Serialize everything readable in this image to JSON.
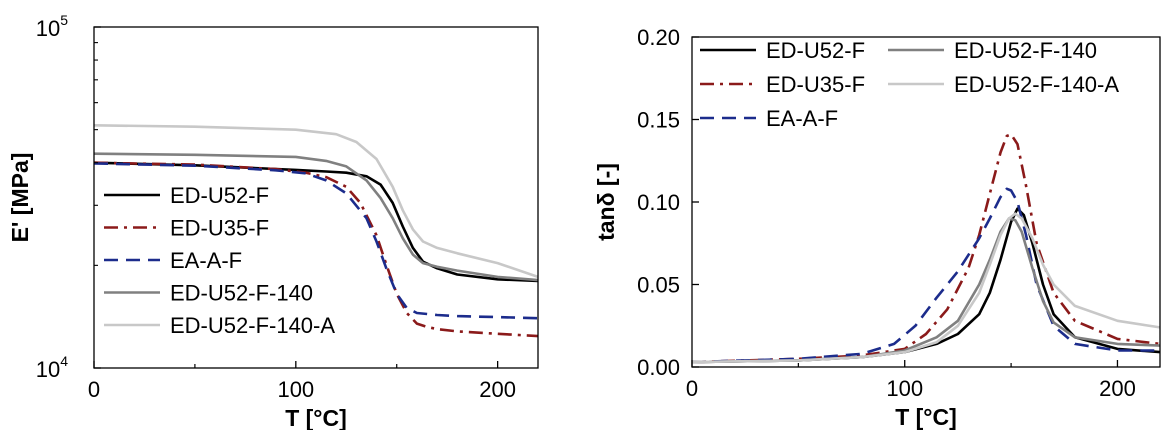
{
  "chart_data": [
    {
      "type": "line",
      "xlabel": "T [°C]",
      "ylabel": "E' [MPa]",
      "xlim": [
        0,
        220
      ],
      "ylim": [
        10000,
        100000
      ],
      "yscale": "log",
      "grid": false,
      "legend_position": "bottom-left",
      "x_ticks": [
        0,
        100,
        200
      ],
      "x_tick_labels": [
        "0",
        "100",
        "200"
      ],
      "y_ticks": [
        {
          "base": "10",
          "exp": "4",
          "value": 10000
        },
        {
          "base": "10",
          "exp": "5",
          "value": 100000
        }
      ],
      "series": [
        {
          "name": "ED-U52-F",
          "color": "#000000",
          "dash": "solid",
          "x": [
            0,
            50,
            100,
            115,
            125,
            135,
            142,
            148,
            153,
            158,
            163,
            170,
            180,
            200,
            220
          ],
          "y": [
            40000,
            39300,
            38100,
            37700,
            37400,
            36500,
            34500,
            30500,
            26000,
            22500,
            20500,
            19600,
            18800,
            18200,
            18000
          ]
        },
        {
          "name": "ED-U35-F",
          "color": "#8b1a1a",
          "dash": "dashdot",
          "x": [
            0,
            50,
            90,
            105,
            115,
            125,
            132,
            140,
            145,
            150,
            155,
            160,
            165,
            170,
            180,
            200,
            220
          ],
          "y": [
            40000,
            39500,
            38300,
            37400,
            36300,
            34000,
            30500,
            24500,
            20000,
            16500,
            14500,
            13500,
            13200,
            13000,
            12800,
            12600,
            12400
          ]
        },
        {
          "name": "EA-A-F",
          "color": "#1c2c8c",
          "dash": "dashed",
          "x": [
            0,
            50,
            90,
            105,
            115,
            125,
            135,
            140,
            145,
            150,
            155,
            160,
            170,
            180,
            200,
            220
          ],
          "y": [
            39800,
            39200,
            38000,
            37200,
            35500,
            32500,
            27500,
            23500,
            19500,
            16500,
            15000,
            14500,
            14300,
            14200,
            14100,
            14000
          ]
        },
        {
          "name": "ED-U52-F-140",
          "color": "#808080",
          "dash": "solid",
          "x": [
            0,
            50,
            100,
            115,
            125,
            135,
            142,
            148,
            153,
            158,
            163,
            170,
            180,
            200,
            220
          ],
          "y": [
            42500,
            42200,
            41600,
            40500,
            39000,
            35500,
            31500,
            27500,
            24000,
            21500,
            20300,
            19800,
            19300,
            18500,
            18100
          ]
        },
        {
          "name": "ED-U52-F-140-A",
          "color": "#c8c8c8",
          "dash": "solid",
          "x": [
            0,
            50,
            100,
            120,
            130,
            140,
            148,
            153,
            158,
            163,
            170,
            180,
            200,
            220
          ],
          "y": [
            51500,
            51000,
            50000,
            48500,
            46000,
            41000,
            34000,
            29000,
            25500,
            23500,
            22500,
            21700,
            20300,
            18500
          ]
        }
      ]
    },
    {
      "type": "line",
      "xlabel": "T [°C]",
      "ylabel": "tanδ [-]",
      "xlim": [
        0,
        220
      ],
      "ylim": [
        0.0,
        0.2
      ],
      "grid": false,
      "legend_position": "top",
      "x_ticks": [
        0,
        100,
        200
      ],
      "x_tick_labels": [
        "0",
        "100",
        "200"
      ],
      "y_ticks": [
        0.0,
        0.05,
        0.1,
        0.15,
        0.2
      ],
      "y_tick_labels": [
        "0.00",
        "0.05",
        "0.10",
        "0.15",
        "0.20"
      ],
      "series": [
        {
          "name": "ED-U52-F",
          "color": "#000000",
          "dash": "solid",
          "x": [
            0,
            50,
            80,
            100,
            115,
            125,
            135,
            140,
            145,
            150,
            153,
            156,
            160,
            165,
            170,
            180,
            200,
            220
          ],
          "y": [
            0.003,
            0.004,
            0.006,
            0.009,
            0.014,
            0.02,
            0.032,
            0.045,
            0.065,
            0.088,
            0.096,
            0.092,
            0.075,
            0.05,
            0.032,
            0.018,
            0.011,
            0.009
          ]
        },
        {
          "name": "ED-U35-F",
          "color": "#8b1a1a",
          "dash": "dashdot",
          "x": [
            0,
            50,
            80,
            100,
            110,
            120,
            130,
            135,
            140,
            145,
            148,
            150,
            153,
            157,
            162,
            170,
            180,
            200,
            220
          ],
          "y": [
            0.003,
            0.005,
            0.007,
            0.011,
            0.02,
            0.035,
            0.06,
            0.08,
            0.105,
            0.13,
            0.14,
            0.141,
            0.135,
            0.11,
            0.075,
            0.045,
            0.028,
            0.017,
            0.014
          ]
        },
        {
          "name": "EA-A-F",
          "color": "#1c2c8c",
          "dash": "dashed",
          "x": [
            0,
            50,
            80,
            95,
            105,
            115,
            125,
            135,
            140,
            145,
            148,
            150,
            153,
            157,
            162,
            170,
            180,
            200,
            220
          ],
          "y": [
            0.003,
            0.005,
            0.008,
            0.014,
            0.025,
            0.042,
            0.058,
            0.078,
            0.09,
            0.103,
            0.108,
            0.107,
            0.1,
            0.08,
            0.05,
            0.025,
            0.014,
            0.01,
            0.01
          ]
        },
        {
          "name": "ED-U52-F-140",
          "color": "#808080",
          "dash": "solid",
          "x": [
            0,
            50,
            80,
            100,
            115,
            125,
            135,
            140,
            145,
            149,
            152,
            155,
            160,
            165,
            170,
            180,
            200,
            220
          ],
          "y": [
            0.003,
            0.004,
            0.006,
            0.01,
            0.018,
            0.028,
            0.05,
            0.065,
            0.082,
            0.09,
            0.089,
            0.082,
            0.06,
            0.04,
            0.027,
            0.018,
            0.014,
            0.013
          ]
        },
        {
          "name": "ED-U52-F-140-A",
          "color": "#c8c8c8",
          "dash": "solid",
          "x": [
            0,
            50,
            80,
            100,
            115,
            125,
            135,
            140,
            145,
            149,
            152,
            155,
            160,
            165,
            170,
            180,
            200,
            220
          ],
          "y": [
            0.003,
            0.004,
            0.006,
            0.009,
            0.015,
            0.025,
            0.045,
            0.062,
            0.08,
            0.09,
            0.093,
            0.09,
            0.078,
            0.062,
            0.05,
            0.037,
            0.028,
            0.024
          ]
        }
      ]
    }
  ]
}
